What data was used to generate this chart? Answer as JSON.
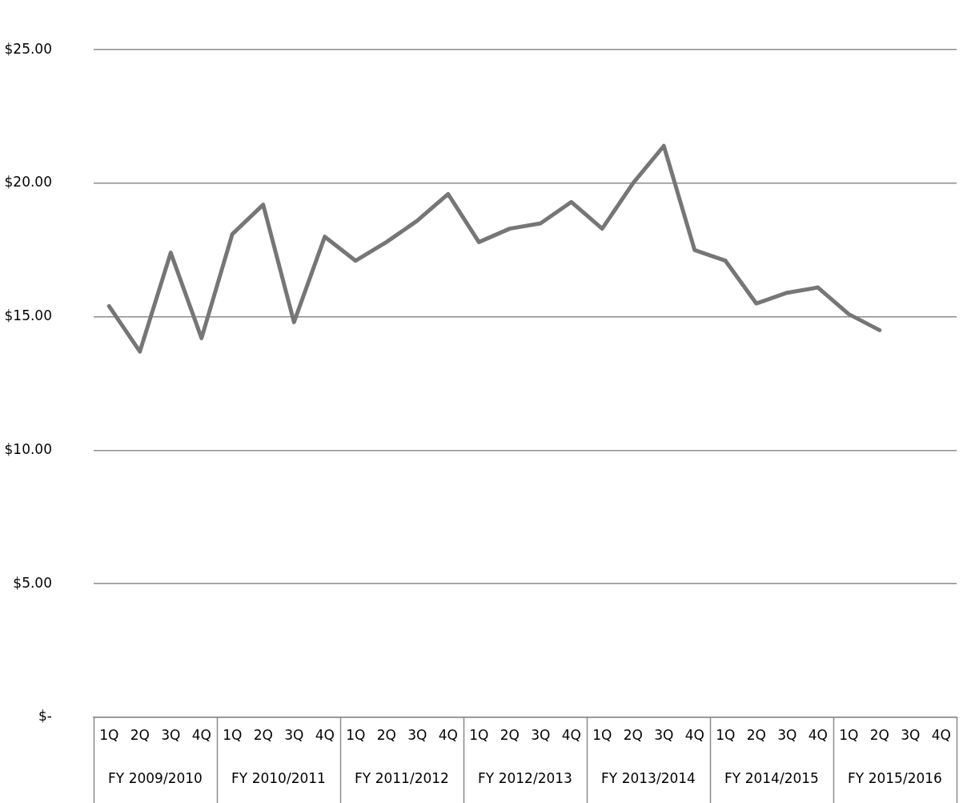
{
  "chart_data": {
    "type": "line",
    "categories": [
      "1Q",
      "2Q",
      "3Q",
      "4Q",
      "1Q",
      "2Q",
      "3Q",
      "4Q",
      "1Q",
      "2Q",
      "3Q",
      "4Q",
      "1Q",
      "2Q",
      "3Q",
      "4Q",
      "1Q",
      "2Q",
      "3Q",
      "4Q",
      "1Q",
      "2Q",
      "3Q",
      "4Q",
      "1Q",
      "2Q",
      "3Q",
      "4Q"
    ],
    "values": [
      15.4,
      13.7,
      17.4,
      14.2,
      18.1,
      19.2,
      14.8,
      18.0,
      17.1,
      17.8,
      18.6,
      19.6,
      17.8,
      18.3,
      18.5,
      19.3,
      18.3,
      20.0,
      21.4,
      17.5,
      17.1,
      15.5,
      15.9,
      16.1,
      15.1,
      14.5,
      null,
      null
    ],
    "color": "#767676",
    "ylim": [
      0,
      25
    ],
    "yticks": [
      {
        "value": 0,
        "label": "$-"
      },
      {
        "value": 5,
        "label": "$5.00"
      },
      {
        "value": 10,
        "label": "$10.00"
      },
      {
        "value": 15,
        "label": "$15.00"
      },
      {
        "value": 20,
        "label": "$20.00"
      },
      {
        "value": 25,
        "label": "$25.00"
      }
    ],
    "annotations": [
      "FY 2009/2010",
      "FY 2010/2011",
      "FY 2011/2012",
      "FY 2012/2013",
      "FY 2013/2014",
      "FY 2014/2015",
      "FY 2015/2016"
    ],
    "grid": "y",
    "legend": false,
    "marker": "none",
    "line_style": "solid"
  }
}
